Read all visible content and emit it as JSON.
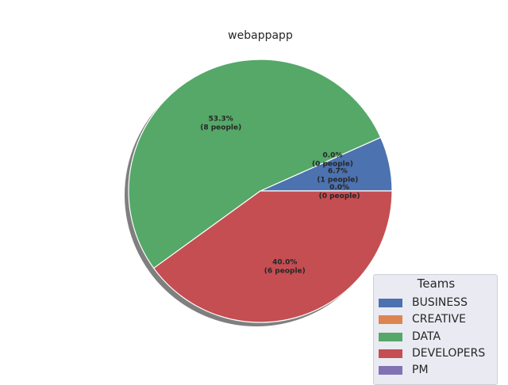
{
  "chart_data": {
    "type": "pie",
    "title": "webappapp",
    "legend_title": "Teams",
    "legend_position": "bottom-right",
    "shadow": true,
    "slices": [
      {
        "name": "BUSINESS",
        "value": 1,
        "percent_label": "6.7%",
        "count_label": "(1 people)",
        "color": "#4c72b0"
      },
      {
        "name": "CREATIVE",
        "value": 0,
        "percent_label": "0.0%",
        "count_label": "(0 people)",
        "color": "#dd8452"
      },
      {
        "name": "DATA",
        "value": 8,
        "percent_label": "53.3%",
        "count_label": "(8 people)",
        "color": "#55a868"
      },
      {
        "name": "DEVELOPERS",
        "value": 6,
        "percent_label": "40.0%",
        "count_label": "(6 people)",
        "color": "#c44e52"
      },
      {
        "name": "PM",
        "value": 0,
        "percent_label": "0.0%",
        "count_label": "(0 people)",
        "color": "#8172b3"
      }
    ]
  }
}
